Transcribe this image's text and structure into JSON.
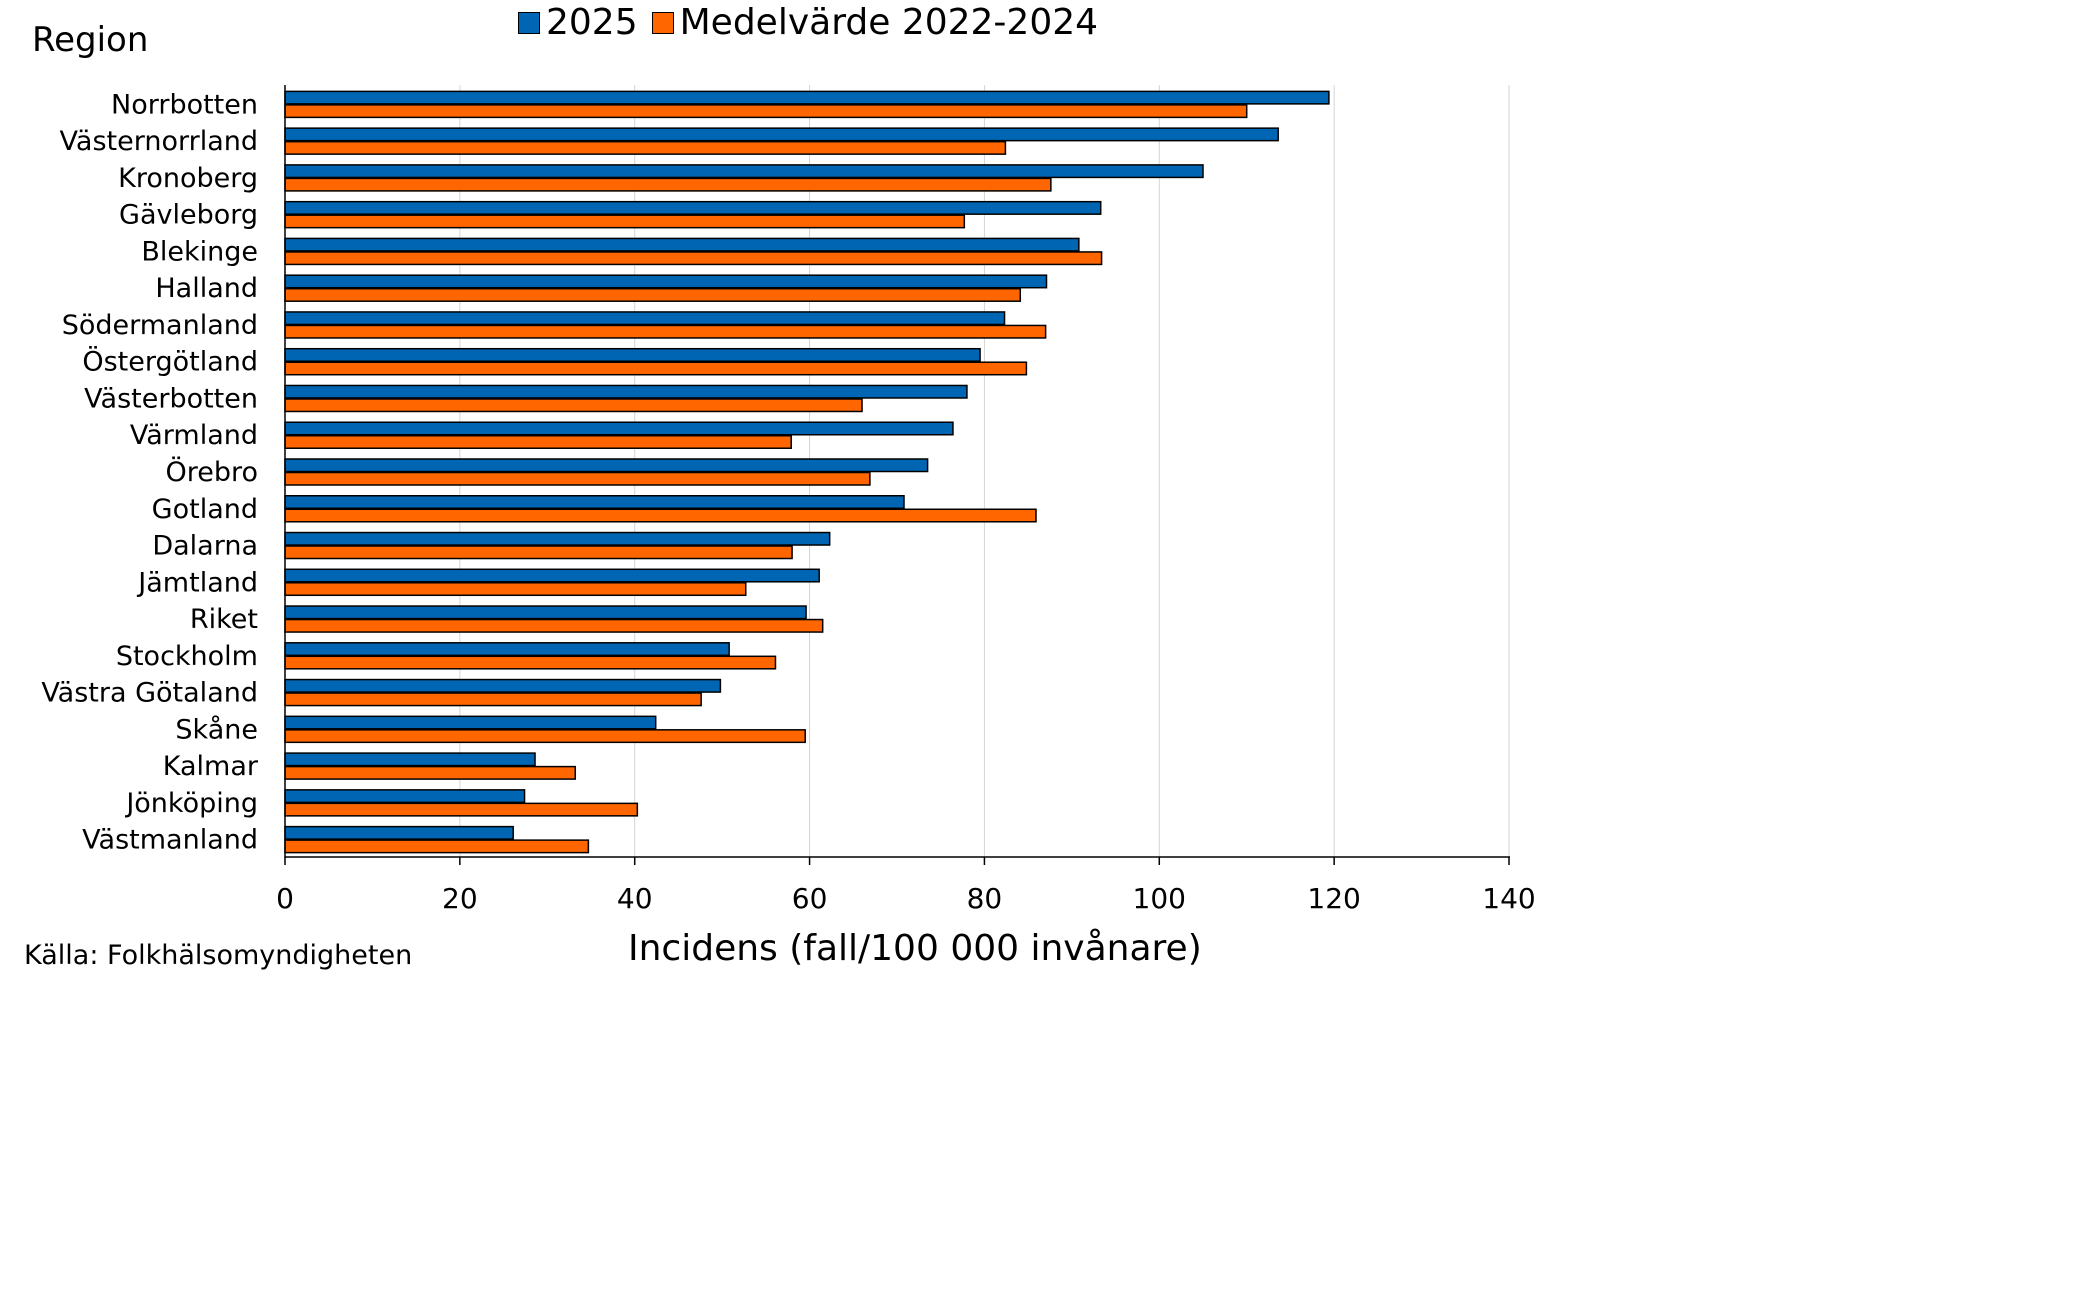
{
  "chart_data": {
    "type": "bar",
    "orientation": "horizontal",
    "categories": [
      "Norrbotten",
      "Västernorrland",
      "Kronoberg",
      "Gävleborg",
      "Blekinge",
      "Halland",
      "Södermanland",
      "Östergötland",
      "Västerbotten",
      "Värmland",
      "Örebro",
      "Gotland",
      "Dalarna",
      "Jämtland",
      "Riket",
      "Stockholm",
      "Västra Götaland",
      "Skåne",
      "Kalmar",
      "Jönköping",
      "Västmanland"
    ],
    "series": [
      {
        "name": "2025",
        "color": "#0066b3",
        "values": [
          119.4,
          113.6,
          105.0,
          93.3,
          90.8,
          87.1,
          82.3,
          79.5,
          78.0,
          76.4,
          73.5,
          70.8,
          62.3,
          61.1,
          59.6,
          50.8,
          49.8,
          42.4,
          28.6,
          27.4,
          26.1
        ]
      },
      {
        "name": "Medelvärde 2022-2024",
        "color": "#ff6600",
        "values": [
          110.0,
          82.4,
          87.6,
          77.7,
          93.4,
          84.1,
          87.0,
          84.8,
          66.0,
          57.9,
          66.9,
          85.9,
          58.0,
          52.7,
          61.5,
          56.1,
          47.6,
          59.5,
          33.2,
          40.3,
          34.7
        ]
      }
    ],
    "xlim": [
      0,
      140
    ],
    "xticks": [
      0,
      20,
      40,
      60,
      80,
      100,
      120,
      140
    ],
    "xlabel": "Incidens (fall/100 000 invånare)",
    "ylabel": "Region",
    "grid": "vertical",
    "legend_position": "top-center",
    "source": "Källa: Folkhälsomyndigheten"
  }
}
